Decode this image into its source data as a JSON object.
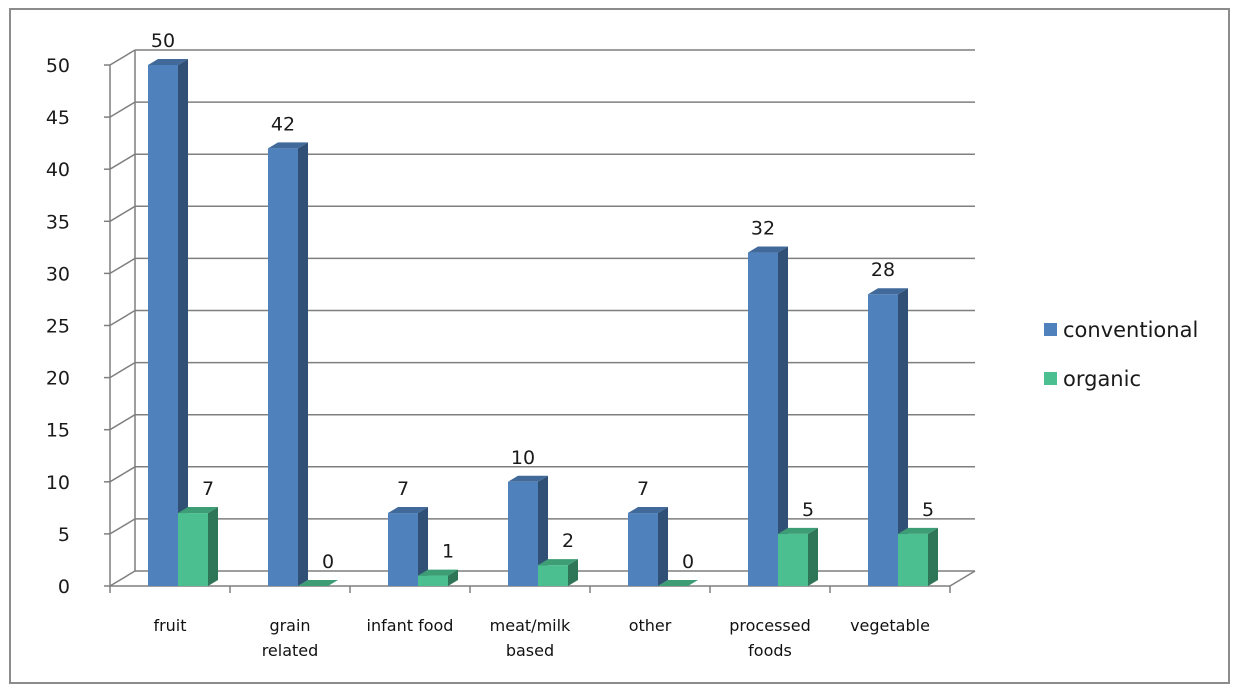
{
  "chart_data": {
    "type": "bar",
    "title": "",
    "xlabel": "",
    "ylabel": "",
    "ylim": [
      0,
      50
    ],
    "yticks": [
      "0",
      "5",
      "10",
      "15",
      "20",
      "25",
      "30",
      "35",
      "40",
      "45",
      "50"
    ],
    "categories": [
      [
        "fruit"
      ],
      [
        "grain",
        "related"
      ],
      [
        "infant food"
      ],
      [
        "meat/milk",
        "based"
      ],
      [
        "other"
      ],
      [
        "processed",
        "foods"
      ],
      [
        "vegetable"
      ]
    ],
    "series": [
      {
        "name": "conventional",
        "values": [
          50,
          42,
          7,
          10,
          7,
          32,
          28
        ],
        "color": "#4f81bd"
      },
      {
        "name": "organic",
        "values": [
          7,
          0,
          1,
          2,
          0,
          5,
          5
        ],
        "color": "#4bbf8f"
      }
    ],
    "grid": true,
    "legend": "right",
    "style": "3d-clustered-column"
  }
}
